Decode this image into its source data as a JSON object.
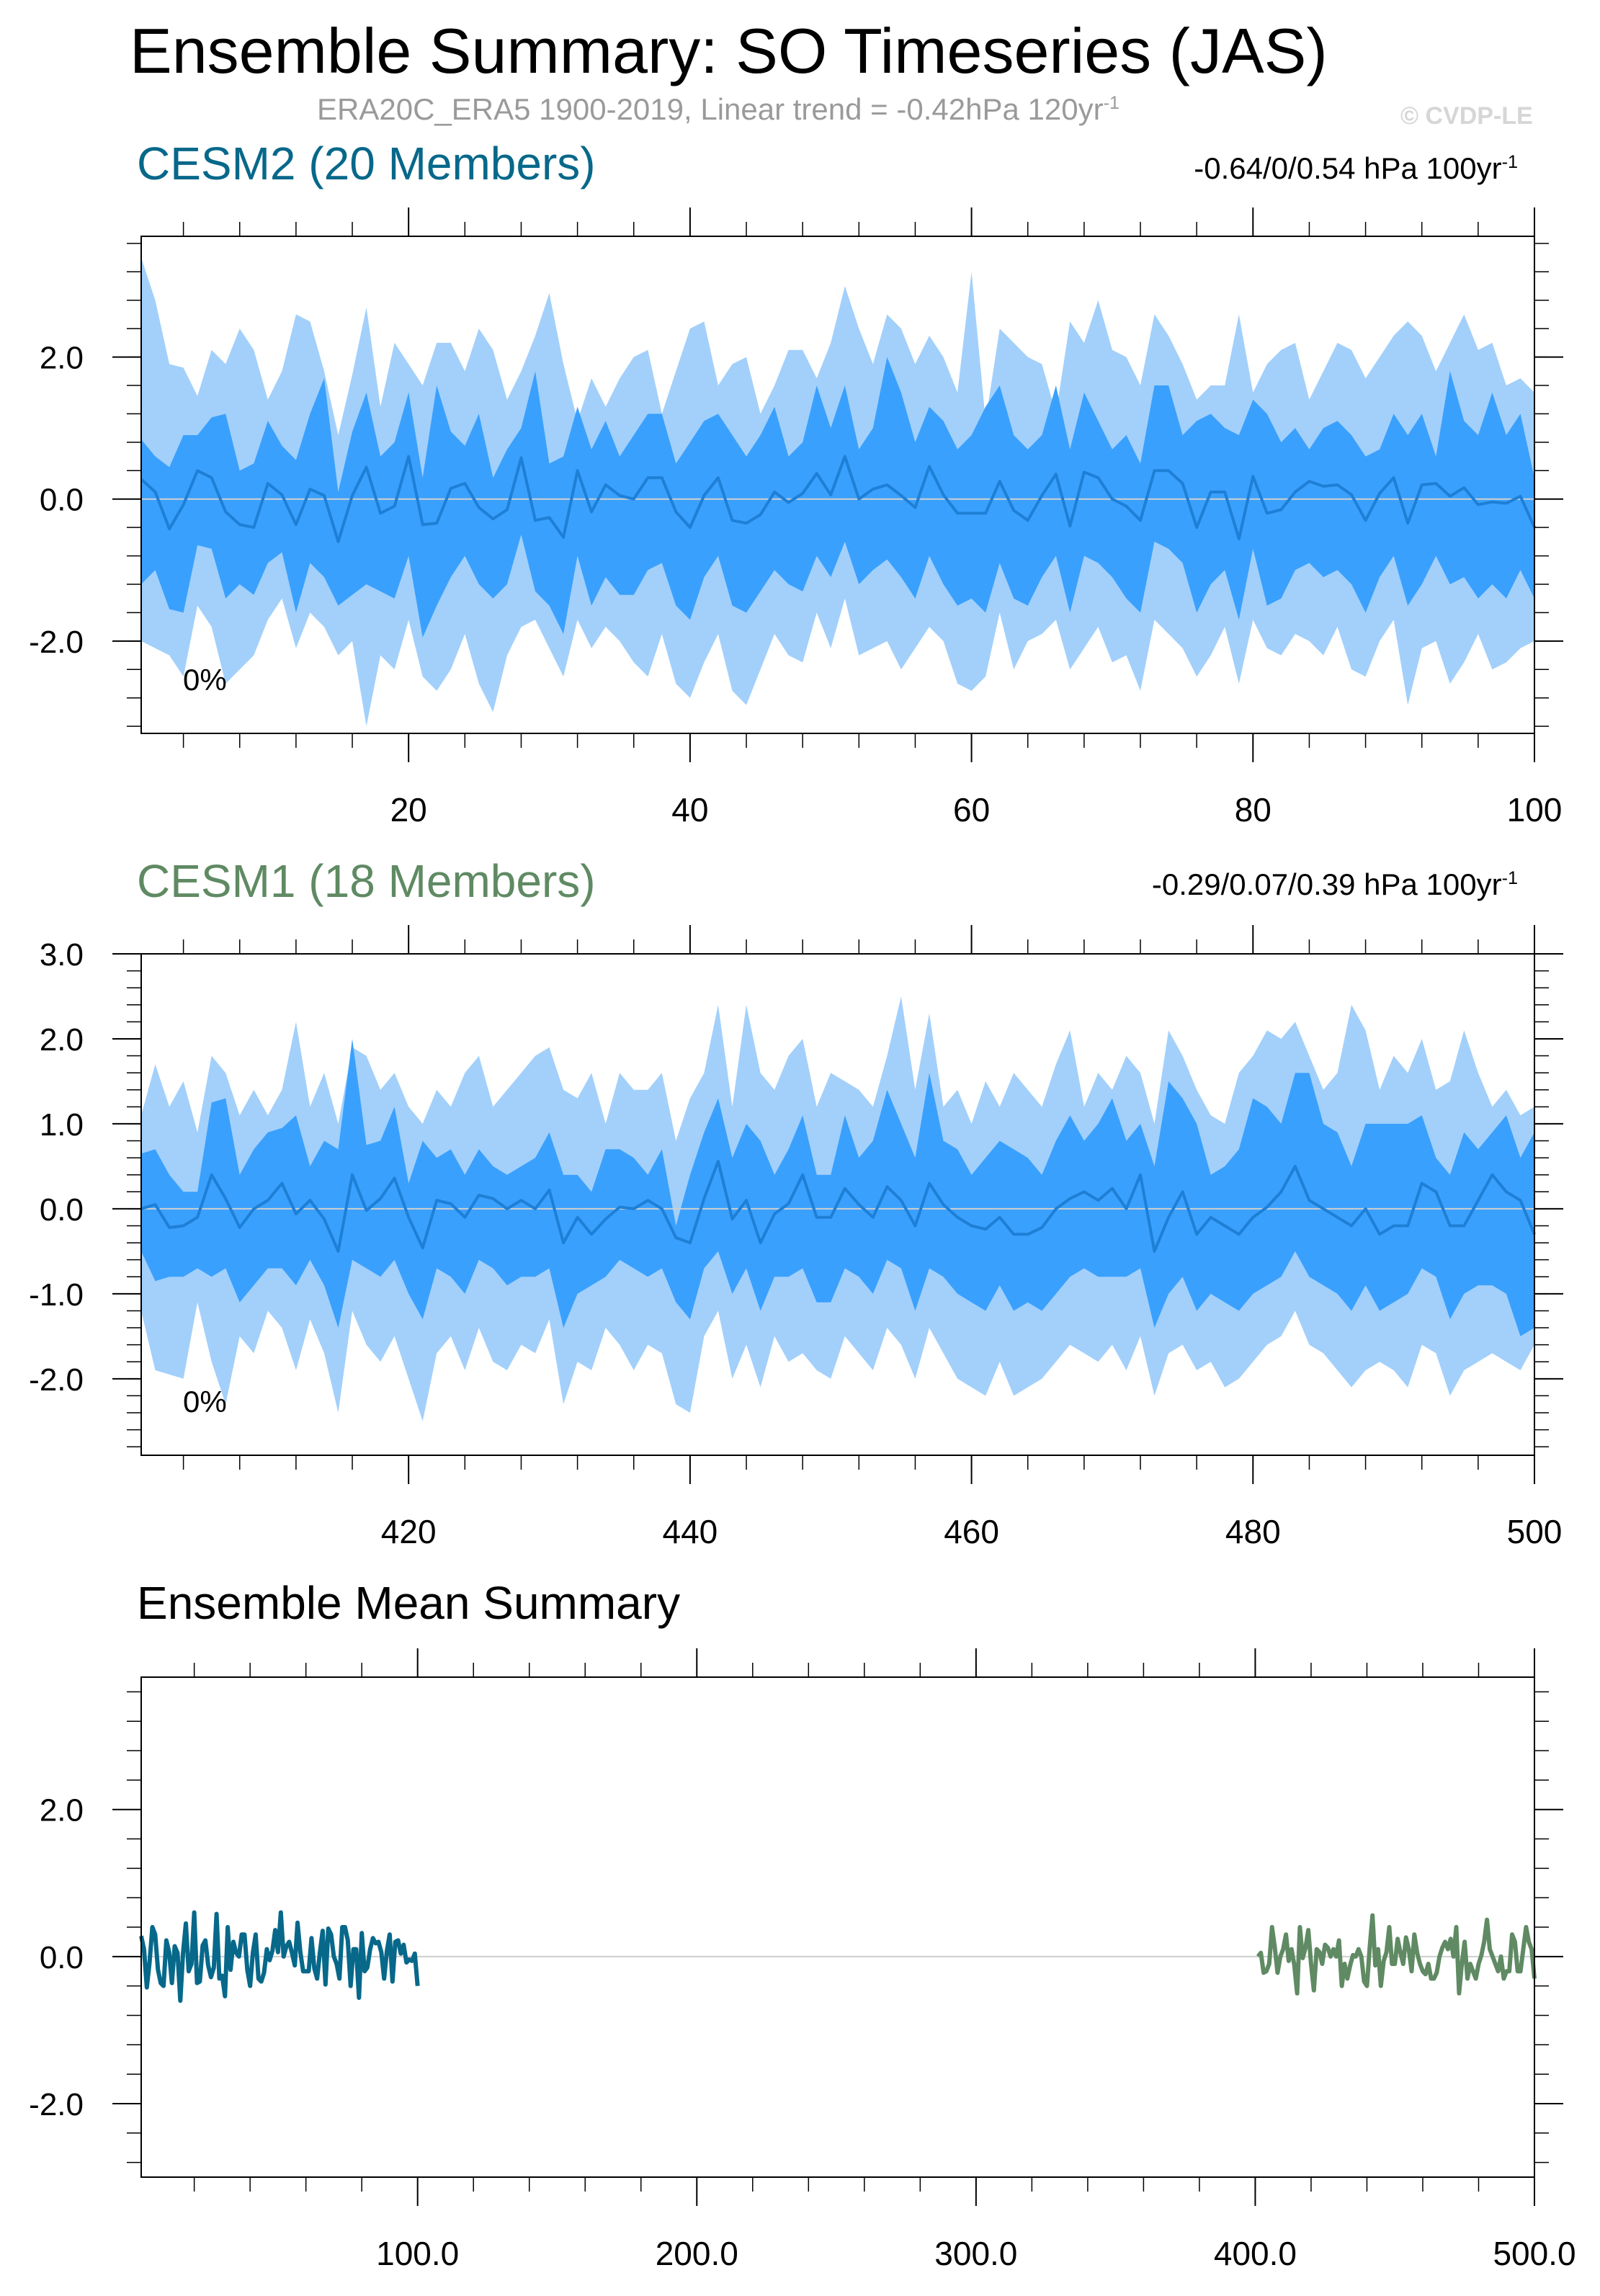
{
  "title": "Ensemble Summary: SO Timeseries (JAS)",
  "subtitle": {
    "text": "ERA20C_ERA5 1900-2019, Linear trend = -0.42hPa 120yr",
    "superscript": "-1"
  },
  "watermark": "© CVDP-LE",
  "colors": {
    "cesm2": "#07688a",
    "cesm1": "#5f8a63",
    "band_outer": "#a2d0fb",
    "band_inner": "#3aa0fd",
    "band_line": "#1e7fd6",
    "zero_line": "#cfcfcf"
  },
  "chart_data": [
    {
      "type": "area",
      "name": "CESM2 (20 Members)",
      "label": "CESM2 (20 Members)",
      "trend_text": "-0.64/0/0.54 hPa 100yr",
      "trend_sup": "-1",
      "percent_label": "0%",
      "xlim": [
        1,
        100
      ],
      "ylim": [
        -3.3,
        3.7
      ],
      "x_ticks": [
        "20",
        "40",
        "60",
        "80",
        "100"
      ],
      "y_ticks": [
        "2.0",
        "0.0",
        "-2.0"
      ],
      "y_tick_values": [
        2,
        0,
        -2
      ],
      "grid": false,
      "x": [
        1,
        2,
        3,
        4,
        5,
        6,
        7,
        8,
        9,
        10,
        11,
        12,
        13,
        14,
        15,
        16,
        17,
        18,
        19,
        20,
        21,
        22,
        23,
        24,
        25,
        26,
        27,
        28,
        29,
        30,
        31,
        32,
        33,
        34,
        35,
        36,
        37,
        38,
        39,
        40,
        41,
        42,
        43,
        44,
        45,
        46,
        47,
        48,
        49,
        50,
        51,
        52,
        53,
        54,
        55,
        56,
        57,
        58,
        59,
        60,
        61,
        62,
        63,
        64,
        65,
        66,
        67,
        68,
        69,
        70,
        71,
        72,
        73,
        74,
        75,
        76,
        77,
        78,
        79,
        80,
        81,
        82,
        83,
        84,
        85,
        86,
        87,
        88,
        89,
        90,
        91,
        92,
        93,
        94,
        95,
        96,
        97,
        98,
        99,
        100
      ],
      "mean": [
        0.28,
        0.1,
        -0.42,
        -0.08,
        0.4,
        0.3,
        -0.18,
        -0.36,
        -0.4,
        0.22,
        0.06,
        -0.36,
        0.14,
        0.05,
        -0.6,
        0.05,
        0.45,
        -0.2,
        -0.1,
        0.6,
        -0.36,
        -0.34,
        0.15,
        0.22,
        -0.12,
        -0.28,
        -0.15,
        0.58,
        -0.3,
        -0.26,
        -0.54,
        0.4,
        -0.18,
        0.2,
        0.05,
        0.0,
        0.3,
        0.3,
        -0.18,
        -0.4,
        0.05,
        0.3,
        -0.3,
        -0.34,
        -0.22,
        0.1,
        -0.05,
        0.08,
        0.36,
        0.06,
        0.6,
        0.0,
        0.14,
        0.2,
        0.05,
        -0.12,
        0.46,
        0.06,
        -0.2,
        -0.2,
        -0.2,
        0.25,
        -0.16,
        -0.3,
        0.05,
        0.35,
        -0.38,
        0.38,
        0.3,
        0.0,
        -0.1,
        -0.3,
        0.4,
        0.4,
        0.22,
        -0.4,
        0.1,
        0.1,
        -0.56,
        0.32,
        -0.2,
        -0.15,
        0.1,
        0.25,
        0.18,
        0.2,
        0.06,
        -0.3,
        0.08,
        0.3,
        -0.34,
        0.2,
        0.22,
        0.04,
        0.16,
        -0.08,
        -0.04,
        -0.06,
        0.04,
        -0.4
      ],
      "inner_hi": [
        0.84,
        0.6,
        0.45,
        0.9,
        0.9,
        1.15,
        1.2,
        0.4,
        0.5,
        1.1,
        0.75,
        0.55,
        1.2,
        1.7,
        0.1,
        0.95,
        1.5,
        0.6,
        0.8,
        1.5,
        0.3,
        1.6,
        0.95,
        0.75,
        1.2,
        0.3,
        0.7,
        1.0,
        1.8,
        0.5,
        0.6,
        1.3,
        0.7,
        1.1,
        0.6,
        0.9,
        1.2,
        1.2,
        0.5,
        0.8,
        1.1,
        1.2,
        0.9,
        0.6,
        0.9,
        1.3,
        0.6,
        0.8,
        1.6,
        1.0,
        1.6,
        0.7,
        1.0,
        2.0,
        1.5,
        0.8,
        1.3,
        1.1,
        0.7,
        0.9,
        1.3,
        1.6,
        0.9,
        0.7,
        0.9,
        1.6,
        0.7,
        1.5,
        1.1,
        0.7,
        0.9,
        0.5,
        1.6,
        1.6,
        0.9,
        1.1,
        1.2,
        1.0,
        0.9,
        1.4,
        1.2,
        0.8,
        1.0,
        0.7,
        1.0,
        1.1,
        0.9,
        0.6,
        0.7,
        1.2,
        0.9,
        1.2,
        0.6,
        1.8,
        1.1,
        0.9,
        1.5,
        0.9,
        1.2,
        0.3
      ],
      "inner_lo": [
        -1.2,
        -1.0,
        -1.55,
        -1.6,
        -0.65,
        -0.7,
        -1.4,
        -1.2,
        -1.35,
        -0.9,
        -0.75,
        -1.6,
        -0.9,
        -1.1,
        -1.5,
        -1.35,
        -1.2,
        -1.3,
        -1.4,
        -0.8,
        -1.95,
        -1.5,
        -1.1,
        -0.8,
        -1.2,
        -1.4,
        -1.2,
        -0.5,
        -1.3,
        -1.5,
        -1.9,
        -0.8,
        -1.5,
        -1.1,
        -1.35,
        -1.35,
        -1.0,
        -0.9,
        -1.5,
        -1.7,
        -1.1,
        -0.8,
        -1.5,
        -1.6,
        -1.3,
        -1.0,
        -1.2,
        -1.3,
        -0.8,
        -1.1,
        -0.6,
        -1.2,
        -1.0,
        -0.85,
        -1.1,
        -1.4,
        -0.8,
        -1.2,
        -1.5,
        -1.4,
        -1.6,
        -0.9,
        -1.4,
        -1.5,
        -1.1,
        -0.8,
        -1.6,
        -0.8,
        -0.9,
        -1.1,
        -1.4,
        -1.6,
        -0.6,
        -0.7,
        -0.9,
        -1.6,
        -1.2,
        -1.0,
        -1.7,
        -0.7,
        -1.5,
        -1.4,
        -1.0,
        -0.9,
        -1.1,
        -1.0,
        -1.2,
        -1.6,
        -1.1,
        -0.8,
        -1.5,
        -1.2,
        -0.8,
        -1.2,
        -1.1,
        -1.4,
        -1.2,
        -1.4,
        -1.0,
        -1.4
      ],
      "outer_hi": [
        3.4,
        2.8,
        1.9,
        1.85,
        1.45,
        2.1,
        1.9,
        2.4,
        2.1,
        1.4,
        1.8,
        2.6,
        2.5,
        1.8,
        0.9,
        1.75,
        2.7,
        1.3,
        2.2,
        1.9,
        1.6,
        2.2,
        2.2,
        1.8,
        2.4,
        2.1,
        1.4,
        1.8,
        2.3,
        2.9,
        1.9,
        1.1,
        1.7,
        1.3,
        1.7,
        2.0,
        2.1,
        1.2,
        1.8,
        2.4,
        2.5,
        1.6,
        1.9,
        2.0,
        1.2,
        1.6,
        2.1,
        2.1,
        1.7,
        2.2,
        3.0,
        2.4,
        1.9,
        2.6,
        2.4,
        1.9,
        2.3,
        2.0,
        1.5,
        3.2,
        1.1,
        2.4,
        2.2,
        2.0,
        1.9,
        1.2,
        2.5,
        2.2,
        2.8,
        2.1,
        2.0,
        1.6,
        2.6,
        2.3,
        1.9,
        1.4,
        1.6,
        1.6,
        2.6,
        1.5,
        1.9,
        2.1,
        2.2,
        1.4,
        1.8,
        2.2,
        2.1,
        1.7,
        2.0,
        2.3,
        2.5,
        2.3,
        1.8,
        2.2,
        2.6,
        2.1,
        2.2,
        1.6,
        1.7,
        1.5
      ],
      "outer_lo": [
        -2.0,
        -2.1,
        -2.2,
        -2.5,
        -1.5,
        -1.8,
        -2.6,
        -2.4,
        -2.2,
        -1.7,
        -1.4,
        -2.1,
        -1.6,
        -1.8,
        -2.2,
        -2.0,
        -3.2,
        -2.2,
        -2.4,
        -1.7,
        -2.5,
        -2.7,
        -2.4,
        -1.9,
        -2.6,
        -3.0,
        -2.2,
        -1.8,
        -1.7,
        -2.1,
        -2.5,
        -1.7,
        -2.1,
        -1.8,
        -2.0,
        -2.3,
        -2.5,
        -1.9,
        -2.6,
        -2.8,
        -2.3,
        -1.9,
        -2.7,
        -2.9,
        -2.4,
        -1.9,
        -2.2,
        -2.3,
        -1.6,
        -2.1,
        -1.4,
        -2.2,
        -2.1,
        -2.0,
        -2.4,
        -2.1,
        -1.8,
        -2.0,
        -2.6,
        -2.7,
        -2.5,
        -1.6,
        -2.4,
        -2.0,
        -1.9,
        -1.7,
        -2.4,
        -2.1,
        -1.8,
        -2.3,
        -2.2,
        -2.7,
        -1.7,
        -1.9,
        -2.1,
        -2.5,
        -2.2,
        -1.8,
        -2.6,
        -1.7,
        -2.1,
        -2.2,
        -1.9,
        -2.0,
        -2.2,
        -1.8,
        -2.4,
        -2.5,
        -2.0,
        -1.7,
        -2.9,
        -2.1,
        -2.0,
        -2.6,
        -2.3,
        -1.9,
        -2.4,
        -2.3,
        -2.1,
        -2.0
      ]
    },
    {
      "type": "area",
      "name": "CESM1 (18 Members)",
      "label": "CESM1 (18 Members)",
      "trend_text": "-0.29/0.07/0.39 hPa 100yr",
      "trend_sup": "-1",
      "percent_label": "0%",
      "xlim": [
        401,
        500
      ],
      "ylim": [
        -2.9,
        3.0
      ],
      "x_ticks": [
        "420",
        "440",
        "460",
        "480",
        "500"
      ],
      "y_ticks": [
        "3.0",
        "2.0",
        "1.0",
        "0.0",
        "-1.0",
        "-2.0"
      ],
      "y_tick_values": [
        3,
        2,
        1,
        0,
        -1,
        -2
      ],
      "grid": false,
      "x": [
        401,
        402,
        403,
        404,
        405,
        406,
        407,
        408,
        409,
        410,
        411,
        412,
        413,
        414,
        415,
        416,
        417,
        418,
        419,
        420,
        421,
        422,
        423,
        424,
        425,
        426,
        427,
        428,
        429,
        430,
        431,
        432,
        433,
        434,
        435,
        436,
        437,
        438,
        439,
        440,
        441,
        442,
        443,
        444,
        445,
        446,
        447,
        448,
        449,
        450,
        451,
        452,
        453,
        454,
        455,
        456,
        457,
        458,
        459,
        460,
        461,
        462,
        463,
        464,
        465,
        466,
        467,
        468,
        469,
        470,
        471,
        472,
        473,
        474,
        475,
        476,
        477,
        478,
        479,
        480,
        481,
        482,
        483,
        484,
        485,
        486,
        487,
        488,
        489,
        490,
        491,
        492,
        493,
        494,
        495,
        496,
        497,
        498,
        499,
        500
      ],
      "mean": [
        0.0,
        0.05,
        -0.22,
        -0.2,
        -0.1,
        0.4,
        0.12,
        -0.22,
        0.0,
        0.1,
        0.3,
        -0.06,
        0.1,
        -0.12,
        -0.5,
        0.4,
        -0.02,
        0.12,
        0.36,
        -0.1,
        -0.46,
        0.1,
        0.06,
        -0.1,
        0.16,
        0.12,
        0.0,
        0.1,
        0.0,
        0.22,
        -0.4,
        -0.1,
        -0.3,
        -0.12,
        0.02,
        0.0,
        0.1,
        0.0,
        -0.34,
        -0.4,
        0.12,
        0.56,
        -0.12,
        0.1,
        -0.4,
        -0.06,
        0.06,
        0.4,
        -0.1,
        -0.1,
        0.24,
        0.05,
        -0.1,
        0.26,
        0.1,
        -0.2,
        0.3,
        0.05,
        -0.1,
        -0.2,
        -0.24,
        -0.1,
        -0.3,
        -0.3,
        -0.22,
        0.0,
        0.12,
        0.2,
        0.1,
        0.24,
        0.0,
        0.4,
        -0.5,
        -0.1,
        0.2,
        -0.3,
        -0.1,
        -0.2,
        -0.3,
        -0.1,
        0.02,
        0.2,
        0.5,
        0.1,
        0.0,
        -0.1,
        -0.2,
        0.0,
        -0.3,
        -0.2,
        -0.2,
        0.3,
        0.2,
        -0.2,
        -0.2,
        0.1,
        0.4,
        0.2,
        0.1,
        -0.3
      ],
      "inner_hi": [
        0.65,
        0.7,
        0.4,
        0.2,
        0.2,
        1.25,
        1.3,
        0.4,
        0.7,
        0.9,
        0.95,
        1.1,
        0.5,
        0.8,
        0.7,
        2.0,
        0.75,
        0.8,
        1.2,
        0.3,
        0.8,
        0.6,
        0.7,
        0.4,
        0.7,
        0.5,
        0.4,
        0.5,
        0.6,
        0.9,
        0.4,
        0.4,
        0.2,
        0.7,
        0.7,
        0.6,
        0.4,
        0.7,
        -0.2,
        0.4,
        0.9,
        1.3,
        0.6,
        1.0,
        0.8,
        0.4,
        0.7,
        1.1,
        0.4,
        0.4,
        1.1,
        0.6,
        0.8,
        1.4,
        1.0,
        0.6,
        1.6,
        0.8,
        0.7,
        0.4,
        0.6,
        0.8,
        0.7,
        0.6,
        0.4,
        0.8,
        1.1,
        0.8,
        1.0,
        1.3,
        0.8,
        1.0,
        0.5,
        1.5,
        1.3,
        1.0,
        0.4,
        0.5,
        0.7,
        1.3,
        1.2,
        1.0,
        1.6,
        1.6,
        1.0,
        0.9,
        0.5,
        1.0,
        1.0,
        1.0,
        1.0,
        1.1,
        0.6,
        0.4,
        0.9,
        0.7,
        0.9,
        1.1,
        0.6,
        0.9
      ],
      "inner_lo": [
        -0.5,
        -0.85,
        -0.8,
        -0.8,
        -0.7,
        -0.8,
        -0.7,
        -1.1,
        -0.9,
        -0.7,
        -0.7,
        -0.9,
        -0.6,
        -0.9,
        -1.4,
        -0.6,
        -0.7,
        -0.8,
        -0.6,
        -1.0,
        -1.3,
        -0.7,
        -0.8,
        -1.0,
        -0.6,
        -0.7,
        -0.9,
        -0.8,
        -0.8,
        -0.7,
        -1.4,
        -1.0,
        -0.9,
        -0.8,
        -0.6,
        -0.7,
        -0.8,
        -0.7,
        -1.1,
        -1.3,
        -0.7,
        -0.5,
        -1.0,
        -0.7,
        -1.2,
        -0.8,
        -0.8,
        -0.7,
        -1.1,
        -1.1,
        -0.7,
        -0.8,
        -1.0,
        -0.6,
        -0.7,
        -1.2,
        -0.7,
        -0.8,
        -1.0,
        -1.1,
        -1.2,
        -0.9,
        -1.2,
        -1.1,
        -1.2,
        -1.0,
        -0.8,
        -0.7,
        -0.8,
        -0.8,
        -0.8,
        -0.7,
        -1.4,
        -1.0,
        -0.8,
        -1.2,
        -1.0,
        -1.1,
        -1.2,
        -1.0,
        -0.9,
        -0.8,
        -0.5,
        -0.8,
        -0.9,
        -1.0,
        -1.2,
        -0.9,
        -1.2,
        -1.1,
        -1.0,
        -0.7,
        -0.8,
        -1.3,
        -1.0,
        -0.9,
        -0.9,
        -1.0,
        -1.5,
        -1.4
      ],
      "outer_hi": [
        1.1,
        1.7,
        1.2,
        1.5,
        0.9,
        1.8,
        1.6,
        1.1,
        1.4,
        1.1,
        1.4,
        2.2,
        1.2,
        1.6,
        1.0,
        1.9,
        1.8,
        1.4,
        1.6,
        1.2,
        1.0,
        1.4,
        1.2,
        1.6,
        1.8,
        1.2,
        1.4,
        1.6,
        1.8,
        1.9,
        1.4,
        1.3,
        1.6,
        1.0,
        1.6,
        1.4,
        1.4,
        1.6,
        0.8,
        1.3,
        1.6,
        2.4,
        1.2,
        2.4,
        1.6,
        1.4,
        1.8,
        2.0,
        1.2,
        1.6,
        1.5,
        1.4,
        1.2,
        1.8,
        2.5,
        1.4,
        2.3,
        1.2,
        1.4,
        1.0,
        1.5,
        1.2,
        1.6,
        1.4,
        1.2,
        1.7,
        2.1,
        1.2,
        1.6,
        1.4,
        1.8,
        1.6,
        1.0,
        2.1,
        1.8,
        1.4,
        1.1,
        1.0,
        1.6,
        1.8,
        2.1,
        2.0,
        2.2,
        1.8,
        1.4,
        1.6,
        2.4,
        2.1,
        1.4,
        1.8,
        1.6,
        2.0,
        1.4,
        1.5,
        2.1,
        1.6,
        1.2,
        1.4,
        1.1,
        1.2
      ],
      "outer_lo": [
        -1.2,
        -1.9,
        -1.95,
        -2.0,
        -1.1,
        -1.8,
        -2.3,
        -1.5,
        -1.7,
        -1.2,
        -1.4,
        -1.9,
        -1.3,
        -1.7,
        -2.4,
        -1.2,
        -1.6,
        -1.8,
        -1.5,
        -2.0,
        -2.5,
        -1.7,
        -1.5,
        -1.9,
        -1.4,
        -1.8,
        -1.9,
        -1.6,
        -1.7,
        -1.3,
        -2.3,
        -1.8,
        -1.9,
        -1.4,
        -1.6,
        -1.9,
        -1.6,
        -1.7,
        -2.3,
        -2.4,
        -1.5,
        -1.2,
        -2.0,
        -1.6,
        -2.1,
        -1.5,
        -1.8,
        -1.7,
        -1.9,
        -2.0,
        -1.5,
        -1.7,
        -1.9,
        -1.4,
        -1.6,
        -2.0,
        -1.4,
        -1.7,
        -2.0,
        -2.1,
        -2.2,
        -1.8,
        -2.2,
        -2.1,
        -2.0,
        -1.8,
        -1.6,
        -1.7,
        -1.8,
        -1.6,
        -1.9,
        -1.5,
        -2.2,
        -1.7,
        -1.6,
        -1.9,
        -1.8,
        -2.1,
        -2.0,
        -1.8,
        -1.6,
        -1.5,
        -1.2,
        -1.6,
        -1.7,
        -1.9,
        -2.1,
        -1.9,
        -1.8,
        -1.9,
        -2.1,
        -1.6,
        -1.7,
        -2.2,
        -1.9,
        -1.8,
        -1.7,
        -1.8,
        -1.9,
        -1.6
      ]
    },
    {
      "type": "line",
      "name": "Ensemble Mean Summary",
      "label": "Ensemble Mean Summary",
      "xlim": [
        1,
        500
      ],
      "ylim": [
        -3.0,
        3.8
      ],
      "x_ticks": [
        "100.0",
        "200.0",
        "300.0",
        "400.0",
        "500.0"
      ],
      "x_tick_values": [
        100,
        200,
        300,
        400,
        500
      ],
      "y_ticks": [
        "2.0",
        "0.0",
        "-2.0"
      ],
      "y_tick_values": [
        2,
        0,
        -2
      ],
      "grid": false,
      "series_ref": [
        {
          "source": "CESM2 (20 Members)",
          "color": "#07688a"
        },
        {
          "source": "CESM1 (18 Members)",
          "color": "#5f8a63"
        }
      ]
    }
  ]
}
